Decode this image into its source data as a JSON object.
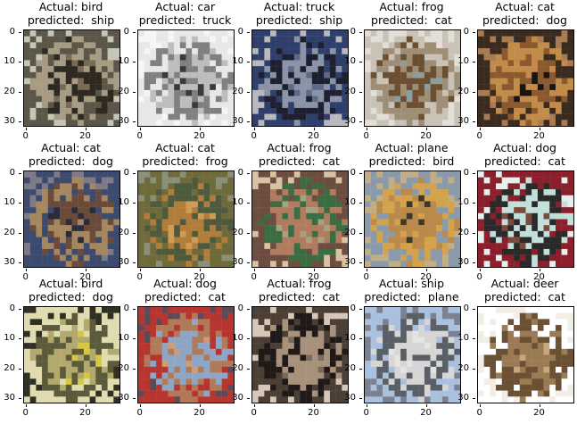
{
  "chart_data": {
    "type": "image-grid",
    "rows": 3,
    "cols": 5,
    "axis": {
      "xlim": [
        0,
        31
      ],
      "ylim": [
        31,
        0
      ],
      "xticks": [
        "0",
        "20"
      ],
      "yticks": [
        "0",
        "10",
        "20",
        "30"
      ]
    },
    "panels": [
      {
        "actual": "Actual: bird",
        "predicted": "predicted:  ship",
        "palette": [
          "#5b5647",
          "#2e2a22",
          "#a79c83",
          "#7a6a55",
          "#c4c7b5"
        ]
      },
      {
        "actual": "Actual: car",
        "predicted": "predicted:  truck",
        "palette": [
          "#e8e8e8",
          "#bdbdbd",
          "#808080",
          "#3a3a3a",
          "#f6f6f6"
        ]
      },
      {
        "actual": "Actual: truck",
        "predicted": "predicted:  ship",
        "palette": [
          "#2f3f6b",
          "#8a94a6",
          "#1e2030",
          "#5d6a88",
          "#b9b8c0"
        ]
      },
      {
        "actual": "Actual: frog",
        "predicted": "predicted:  cat",
        "palette": [
          "#c9c2b6",
          "#6b4f30",
          "#9f8e76",
          "#8c9d9e",
          "#e3dfd6"
        ]
      },
      {
        "actual": "Actual: cat",
        "predicted": "predicted:  dog",
        "palette": [
          "#3a2b1e",
          "#8a5a2e",
          "#c28b4a",
          "#1c1410",
          "#a97b53"
        ]
      },
      {
        "actual": "Actual: cat",
        "predicted": "predicted:  dog",
        "palette": [
          "#3b4a6e",
          "#6b4a3a",
          "#a6865f",
          "#2a2c3a",
          "#7e7a86"
        ]
      },
      {
        "actual": "Actual: cat",
        "predicted": "predicted:  frog",
        "palette": [
          "#6f6a3a",
          "#b17d3a",
          "#4e5a3e",
          "#d19a55",
          "#8a8f78"
        ]
      },
      {
        "actual": "Actual: frog",
        "predicted": "predicted:  cat",
        "palette": [
          "#6d4d3f",
          "#b07b5e",
          "#3b6d43",
          "#a8a07f",
          "#d9c2a2"
        ]
      },
      {
        "actual": "Actual: plane",
        "predicted": "predicted:  bird",
        "palette": [
          "#8b9aaa",
          "#b98a4a",
          "#d4a24a",
          "#3a3a2a",
          "#c1ad86"
        ]
      },
      {
        "actual": "Actual: dog",
        "predicted": "predicted:  cat",
        "palette": [
          "#8b1f2c",
          "#c1e0d9",
          "#2b2a2a",
          "#7a4b3a",
          "#e6f0ee"
        ]
      },
      {
        "actual": "Actual: bird",
        "predicted": "predicted:  dog",
        "palette": [
          "#e0dcb0",
          "#b3a96f",
          "#5b5a3a",
          "#d6c73f",
          "#2f2f22"
        ]
      },
      {
        "actual": "Actual: dog",
        "predicted": "predicted:  cat",
        "palette": [
          "#b8342f",
          "#8ea5c6",
          "#b07a58",
          "#d29a70",
          "#5a4a5a"
        ]
      },
      {
        "actual": "Actual: frog",
        "predicted": "predicted:  cat",
        "palette": [
          "#4a3e35",
          "#a8917b",
          "#1f1a18",
          "#7b6a5b",
          "#d6c7b6"
        ]
      },
      {
        "actual": "Actual: ship",
        "predicted": "predicted:  plane",
        "palette": [
          "#a9c0de",
          "#d6d6d6",
          "#5a5f66",
          "#e6e4e0",
          "#7b8190"
        ]
      },
      {
        "actual": "Actual: deer",
        "predicted": "predicted:  cat",
        "palette": [
          "#ffffff",
          "#9b7b54",
          "#6b5034",
          "#c8a77a",
          "#f2eee6"
        ]
      }
    ]
  }
}
